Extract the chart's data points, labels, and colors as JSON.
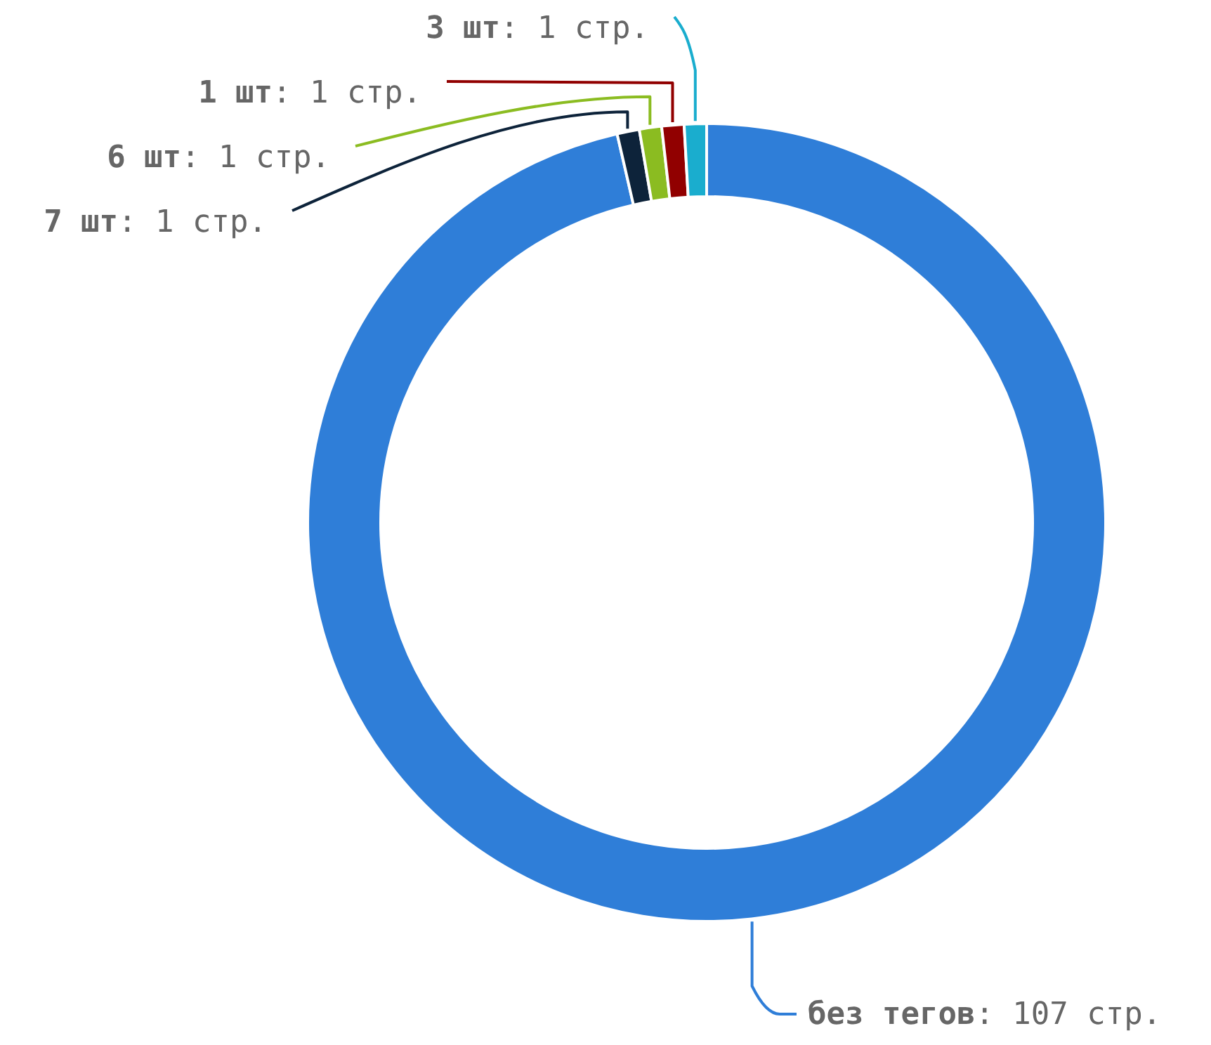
{
  "chart_data": {
    "type": "donut",
    "categories": [
      "без тегов",
      "7 шт",
      "6 шт",
      "1 шт",
      "3 шт"
    ],
    "values": [
      107,
      1,
      1,
      1,
      1
    ],
    "colors": [
      "#2f7ed8",
      "#0d233a",
      "#8bbc21",
      "#910000",
      "#1aadce"
    ],
    "value_labels": [
      ": 107 стр.",
      ": 1 стр.",
      ": 1 стр.",
      ": 1 стр.",
      ": 1 стр."
    ]
  }
}
